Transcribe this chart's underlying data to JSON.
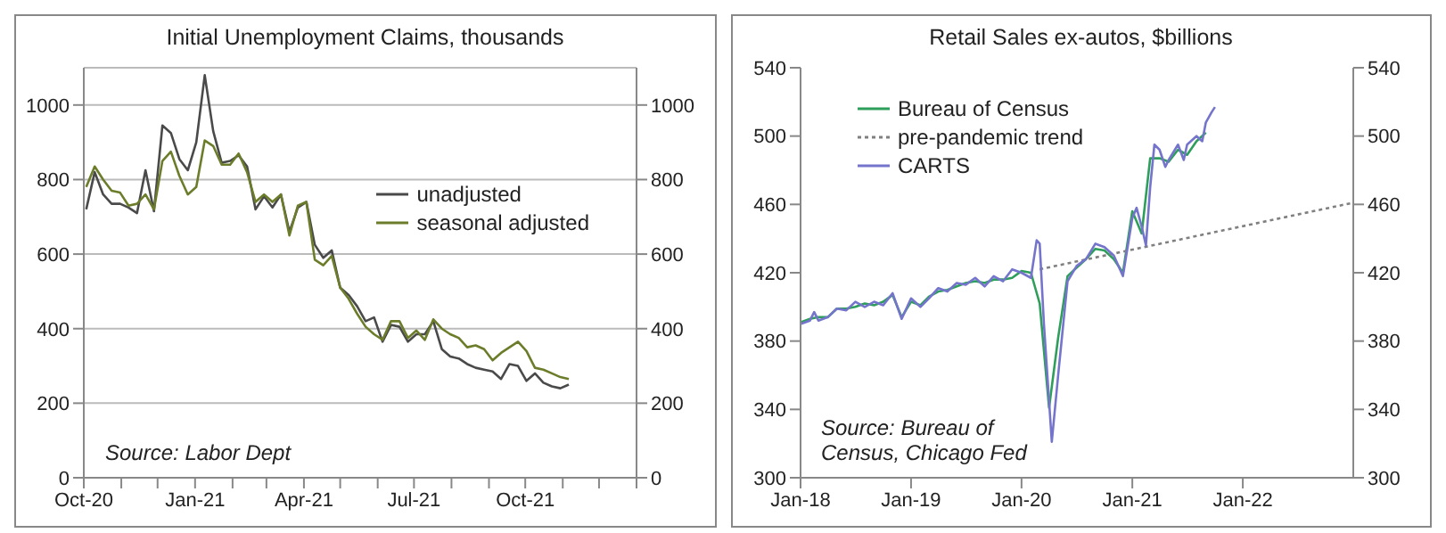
{
  "chart_data": [
    {
      "type": "line",
      "title": "Initial Unemployment Claims, thousands",
      "marker": "none",
      "grid": "y",
      "legend": "right",
      "x": [
        "2020-10-03",
        "2020-10-10",
        "2020-10-17",
        "2020-10-24",
        "2020-10-31",
        "2020-11-07",
        "2020-11-14",
        "2020-11-21",
        "2020-11-28",
        "2020-12-05",
        "2020-12-12",
        "2020-12-19",
        "2020-12-26",
        "2021-01-02",
        "2021-01-09",
        "2021-01-16",
        "2021-01-23",
        "2021-01-30",
        "2021-02-06",
        "2021-02-13",
        "2021-02-20",
        "2021-02-27",
        "2021-03-06",
        "2021-03-13",
        "2021-03-20",
        "2021-03-27",
        "2021-04-03",
        "2021-04-10",
        "2021-04-17",
        "2021-04-24",
        "2021-05-01",
        "2021-05-08",
        "2021-05-15",
        "2021-05-22",
        "2021-05-29",
        "2021-06-05",
        "2021-06-12",
        "2021-06-19",
        "2021-06-26",
        "2021-07-03",
        "2021-07-10",
        "2021-07-17",
        "2021-07-24",
        "2021-07-31",
        "2021-08-07",
        "2021-08-14",
        "2021-08-21",
        "2021-08-28",
        "2021-09-04",
        "2021-09-11",
        "2021-09-18",
        "2021-09-25",
        "2021-10-02",
        "2021-10-09",
        "2021-10-16",
        "2021-10-23",
        "2021-10-30",
        "2021-11-06"
      ],
      "series": [
        {
          "name": "unadjusted",
          "color": "#4a4a4a",
          "values": [
            720,
            820,
            760,
            735,
            735,
            725,
            710,
            825,
            715,
            945,
            925,
            855,
            825,
            900,
            1080,
            930,
            845,
            850,
            865,
            835,
            720,
            755,
            725,
            760,
            660,
            725,
            740,
            625,
            590,
            610,
            510,
            490,
            460,
            420,
            430,
            365,
            410,
            405,
            365,
            385,
            385,
            420,
            345,
            325,
            320,
            305,
            295,
            290,
            285,
            265,
            305,
            300,
            260,
            280,
            255,
            245,
            240,
            250
          ]
        },
        {
          "name": "seasonal adjusted",
          "color": "#6b7d2a",
          "values": [
            780,
            835,
            800,
            770,
            765,
            730,
            735,
            760,
            720,
            850,
            875,
            810,
            760,
            780,
            905,
            890,
            840,
            840,
            870,
            820,
            740,
            760,
            740,
            760,
            650,
            730,
            740,
            585,
            570,
            595,
            510,
            480,
            440,
            405,
            385,
            370,
            420,
            420,
            375,
            395,
            370,
            425,
            400,
            385,
            375,
            350,
            355,
            345,
            315,
            335,
            350,
            365,
            340,
            295,
            290,
            280,
            270,
            265
          ]
        }
      ],
      "xlim": [
        "2020-10-01",
        "2022-01-01"
      ],
      "xticks": [
        {
          "value": "2020-10-01",
          "label": "Oct-20"
        },
        {
          "value": "2020-11-01",
          "label": null
        },
        {
          "value": "2020-12-01",
          "label": null
        },
        {
          "value": "2021-01-01",
          "label": "Jan-21"
        },
        {
          "value": "2021-02-01",
          "label": null
        },
        {
          "value": "2021-03-01",
          "label": null
        },
        {
          "value": "2021-04-01",
          "label": "Apr-21"
        },
        {
          "value": "2021-05-01",
          "label": null
        },
        {
          "value": "2021-06-01",
          "label": null
        },
        {
          "value": "2021-07-01",
          "label": "Jul-21"
        },
        {
          "value": "2021-08-01",
          "label": null
        },
        {
          "value": "2021-09-01",
          "label": null
        },
        {
          "value": "2021-10-01",
          "label": "Oct-21"
        },
        {
          "value": "2021-11-01",
          "label": null
        },
        {
          "value": "2021-12-01",
          "label": null
        },
        {
          "value": "2022-01-01",
          "label": null
        }
      ],
      "ylim": [
        0,
        1100
      ],
      "yticks": [
        0,
        200,
        400,
        600,
        800,
        1000
      ],
      "y2lim": [
        0,
        1100
      ],
      "y2ticks": [
        0,
        200,
        400,
        600,
        800,
        1000
      ],
      "annotations": [
        "Source: Labor Dept"
      ]
    },
    {
      "type": "line",
      "title": "Retail Sales ex-autos, $billions",
      "marker": "none",
      "grid": false,
      "legend": "top left",
      "series": [
        {
          "name": "Bureau of Census",
          "color": "#2e9e5b",
          "x": [
            "2018-01",
            "2018-02",
            "2018-03",
            "2018-04",
            "2018-05",
            "2018-06",
            "2018-07",
            "2018-08",
            "2018-09",
            "2018-10",
            "2018-11",
            "2018-12",
            "2019-01",
            "2019-02",
            "2019-03",
            "2019-04",
            "2019-05",
            "2019-06",
            "2019-07",
            "2019-08",
            "2019-09",
            "2019-10",
            "2019-11",
            "2019-12",
            "2020-01",
            "2020-02",
            "2020-03",
            "2020-04",
            "2020-05",
            "2020-06",
            "2020-07",
            "2020-08",
            "2020-09",
            "2020-10",
            "2020-11",
            "2020-12",
            "2021-01",
            "2021-02",
            "2021-03",
            "2021-04",
            "2021-05",
            "2021-06",
            "2021-07",
            "2021-08",
            "2021-09"
          ],
          "values": [
            391,
            393,
            394,
            394,
            399,
            399,
            400,
            402,
            401,
            403,
            407,
            394,
            403,
            401,
            406,
            409,
            410,
            412,
            414,
            415,
            414,
            416,
            416,
            417,
            421,
            420,
            402,
            341,
            382,
            418,
            423,
            428,
            434,
            433,
            428,
            420,
            456,
            443,
            487,
            487,
            485,
            492,
            489,
            497,
            502
          ]
        },
        {
          "name": "pre-pandemic trend",
          "color": "#808080",
          "line_style": "dotted",
          "x": [
            "2020-03",
            "2023-01"
          ],
          "values": [
            422,
            461
          ]
        },
        {
          "name": "CARTS",
          "color": "#7474cc",
          "x": [
            "2018-01-01",
            "2018-02-01",
            "2018-02-15",
            "2018-03-01",
            "2018-04-01",
            "2018-05-01",
            "2018-06-01",
            "2018-07-01",
            "2018-08-01",
            "2018-09-01",
            "2018-10-01",
            "2018-11-01",
            "2018-12-01",
            "2019-01-01",
            "2019-02-01",
            "2019-03-01",
            "2019-04-01",
            "2019-05-01",
            "2019-06-01",
            "2019-07-01",
            "2019-08-01",
            "2019-09-01",
            "2019-10-01",
            "2019-11-01",
            "2019-12-01",
            "2020-01-01",
            "2020-02-01",
            "2020-02-20",
            "2020-03-01",
            "2020-03-15",
            "2020-04-10",
            "2020-05-01",
            "2020-06-01",
            "2020-07-01",
            "2020-08-01",
            "2020-09-01",
            "2020-10-01",
            "2020-11-01",
            "2020-12-01",
            "2021-01-01",
            "2021-01-15",
            "2021-02-01",
            "2021-02-15",
            "2021-03-01",
            "2021-03-15",
            "2021-04-01",
            "2021-04-20",
            "2021-05-01",
            "2021-06-01",
            "2021-06-20",
            "2021-07-01",
            "2021-08-01",
            "2021-08-20",
            "2021-09-01",
            "2021-09-20",
            "2021-10-01"
          ],
          "values": [
            390,
            392,
            397,
            392,
            394,
            399,
            398,
            403,
            400,
            403,
            401,
            408,
            393,
            405,
            400,
            405,
            411,
            409,
            414,
            413,
            417,
            412,
            418,
            415,
            422,
            420,
            417,
            439,
            437,
            390,
            321,
            360,
            415,
            424,
            428,
            437,
            435,
            430,
            418,
            452,
            458,
            447,
            436,
            470,
            495,
            492,
            482,
            486,
            495,
            486,
            495,
            500,
            497,
            508,
            514,
            517
          ]
        }
      ],
      "xlim": [
        "2018-01-01",
        "2023-01-01"
      ],
      "xticks": [
        {
          "value": "2018-01-01",
          "label": "Jan-18"
        },
        {
          "value": "2019-01-01",
          "label": "Jan-19"
        },
        {
          "value": "2020-01-01",
          "label": "Jan-20"
        },
        {
          "value": "2021-01-01",
          "label": "Jan-21"
        },
        {
          "value": "2022-01-01",
          "label": "Jan-22"
        }
      ],
      "ylim": [
        300,
        540
      ],
      "yticks": [
        300,
        340,
        380,
        420,
        460,
        500,
        540
      ],
      "y2lim": [
        300,
        540
      ],
      "y2ticks": [
        300,
        340,
        380,
        420,
        460,
        500,
        540
      ],
      "annotations": [
        "Source: Bureau of Census, Chicago Fed"
      ]
    }
  ]
}
